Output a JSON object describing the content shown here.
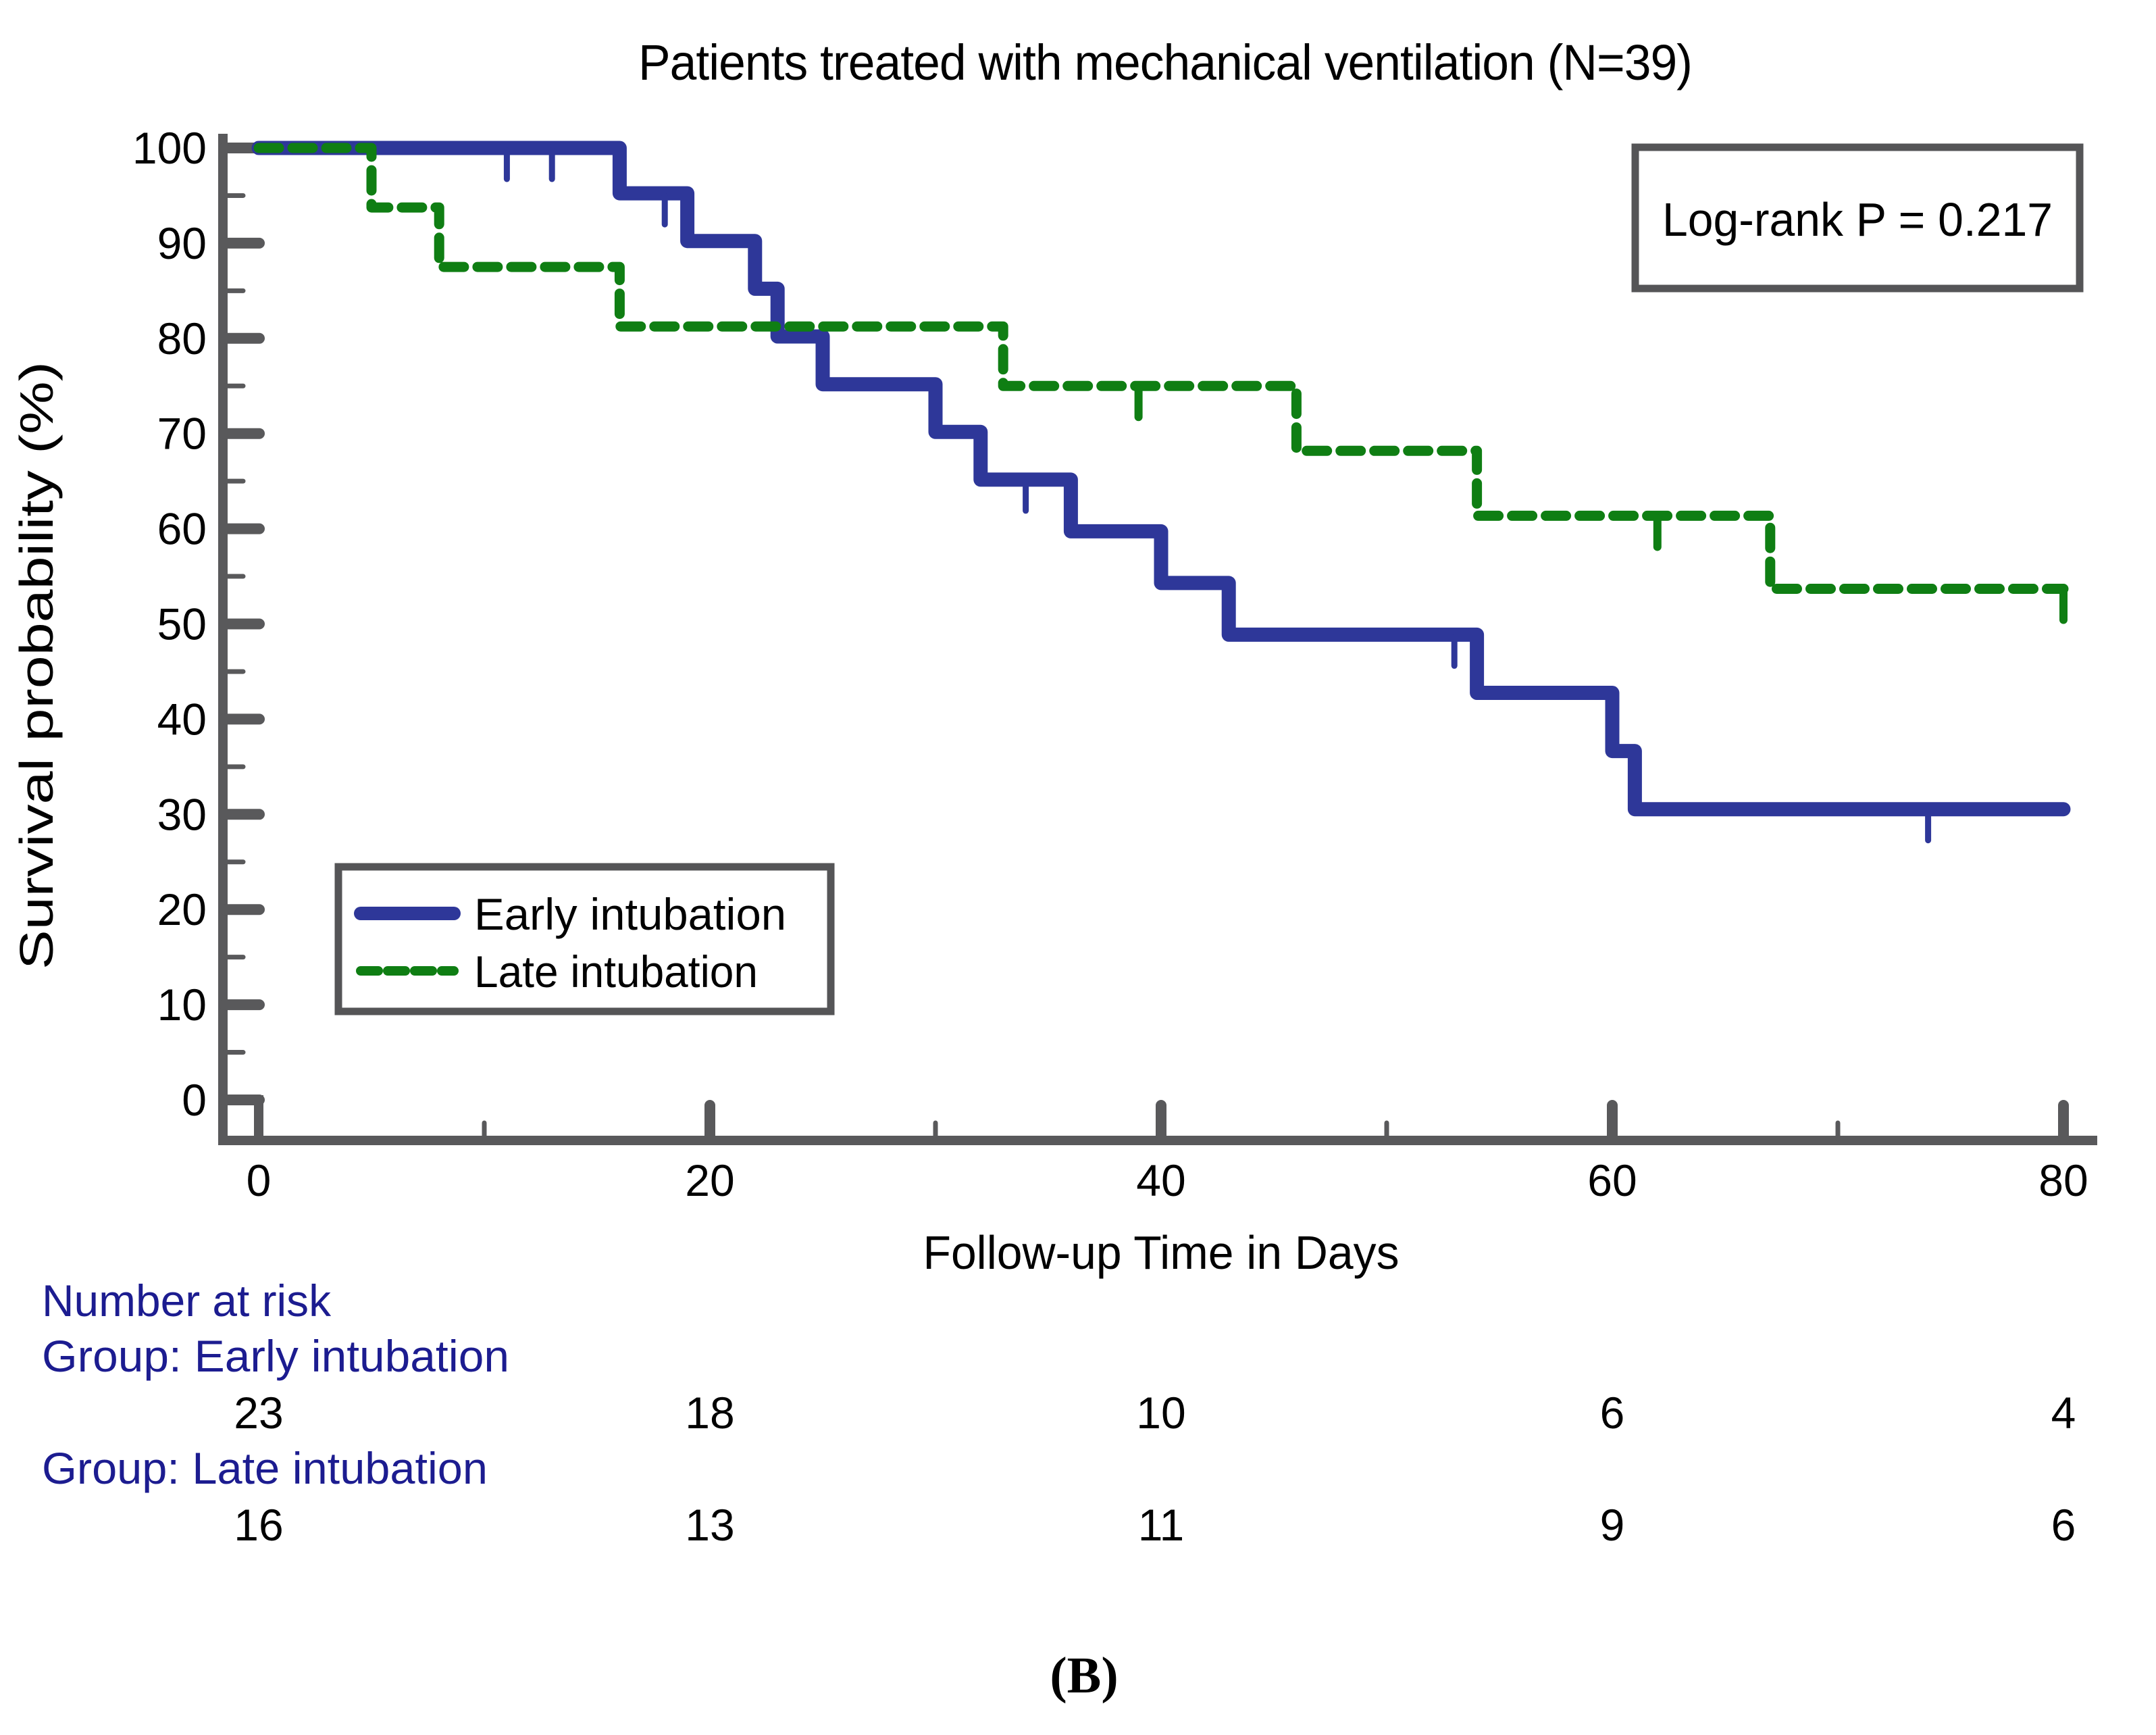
{
  "figure": {
    "title": "Patients treated with mechanical ventilation (N=39)",
    "annotation": "Log-rank P = 0.217",
    "caption": "(B)"
  },
  "axes": {
    "x": {
      "label": "Follow-up Time in Days",
      "min": 0,
      "max": 80,
      "major_ticks": [
        20,
        40,
        60,
        80
      ],
      "tick_labels": [
        0,
        20,
        40,
        60,
        80
      ],
      "minor_ticks": [
        10,
        30,
        50,
        70
      ]
    },
    "y": {
      "label": "Survival probability (%)",
      "min": 0,
      "max": 100,
      "major_ticks": [
        0,
        10,
        20,
        30,
        40,
        50,
        60,
        70,
        80,
        90,
        100
      ],
      "minor_ticks": [
        5,
        15,
        25,
        35,
        45,
        55,
        65,
        75,
        85,
        95
      ]
    }
  },
  "legend": {
    "items": [
      {
        "label": "Early intubation",
        "style": "solid",
        "color": "#2e3799"
      },
      {
        "label": "Late intubation",
        "style": "dashed",
        "color": "#0f7e13"
      }
    ]
  },
  "chart_data": {
    "type": "line",
    "subtype": "kaplan-meier-step",
    "title": "Patients treated with mechanical ventilation (N=39)",
    "xlabel": "Follow-up Time in Days",
    "ylabel": "Survival probability (%)",
    "xlim": [
      0,
      80
    ],
    "ylim": [
      0,
      100
    ],
    "grid": false,
    "legend_position": "lower-left-inside",
    "annotation": "Log-rank P = 0.217",
    "series": [
      {
        "name": "Early intubation",
        "style": "solid",
        "color": "#2e3799",
        "steps": [
          [
            0,
            100
          ],
          [
            16,
            100
          ],
          [
            16,
            95.24
          ],
          [
            19,
            95.24
          ],
          [
            19,
            90.23
          ],
          [
            22,
            90.23
          ],
          [
            22,
            85.21
          ],
          [
            23,
            85.21
          ],
          [
            23,
            80.2
          ],
          [
            25,
            80.2
          ],
          [
            25,
            75.18
          ],
          [
            30,
            75.18
          ],
          [
            30,
            70.17
          ],
          [
            32,
            70.17
          ],
          [
            32,
            65.16
          ],
          [
            36,
            65.16
          ],
          [
            36,
            59.73
          ],
          [
            40,
            59.73
          ],
          [
            40,
            54.3
          ],
          [
            43,
            54.3
          ],
          [
            43,
            48.87
          ],
          [
            54,
            48.87
          ],
          [
            54,
            42.76
          ],
          [
            60,
            42.76
          ],
          [
            60,
            36.65
          ],
          [
            61,
            36.65
          ],
          [
            61,
            30.54
          ],
          [
            80,
            30.54
          ]
        ],
        "censor_marks": [
          [
            11,
            100
          ],
          [
            13,
            100
          ],
          [
            18,
            95.24
          ],
          [
            34,
            65.16
          ],
          [
            53,
            48.87
          ],
          [
            74,
            30.54
          ]
        ]
      },
      {
        "name": "Late intubation",
        "style": "dashed",
        "color": "#0f7e13",
        "steps": [
          [
            0,
            100
          ],
          [
            5,
            100
          ],
          [
            5,
            93.75
          ],
          [
            8,
            93.75
          ],
          [
            8,
            87.5
          ],
          [
            16,
            87.5
          ],
          [
            16,
            81.25
          ],
          [
            33,
            81.25
          ],
          [
            33,
            75
          ],
          [
            46,
            75
          ],
          [
            46,
            68.18
          ],
          [
            54,
            68.18
          ],
          [
            54,
            61.36
          ],
          [
            67,
            61.36
          ],
          [
            67,
            53.69
          ],
          [
            80,
            53.69
          ]
        ],
        "censor_marks": [
          [
            39,
            75
          ],
          [
            62,
            61.36
          ],
          [
            80,
            53.69
          ]
        ]
      }
    ]
  },
  "risk_table": {
    "heading": "Number at risk",
    "times": [
      0,
      20,
      40,
      60,
      80
    ],
    "groups": [
      {
        "label": "Group: Early intubation",
        "counts": [
          23,
          18,
          10,
          6,
          4
        ]
      },
      {
        "label": "Group: Late intubation",
        "counts": [
          16,
          13,
          11,
          9,
          6
        ]
      }
    ]
  },
  "colors": {
    "early_curve": "#2e3799",
    "late_curve": "#0f7e13",
    "axis": "#59595b",
    "box_border": "#555557",
    "risk_label_text": "#1c1c90",
    "background": "#ffffff"
  }
}
